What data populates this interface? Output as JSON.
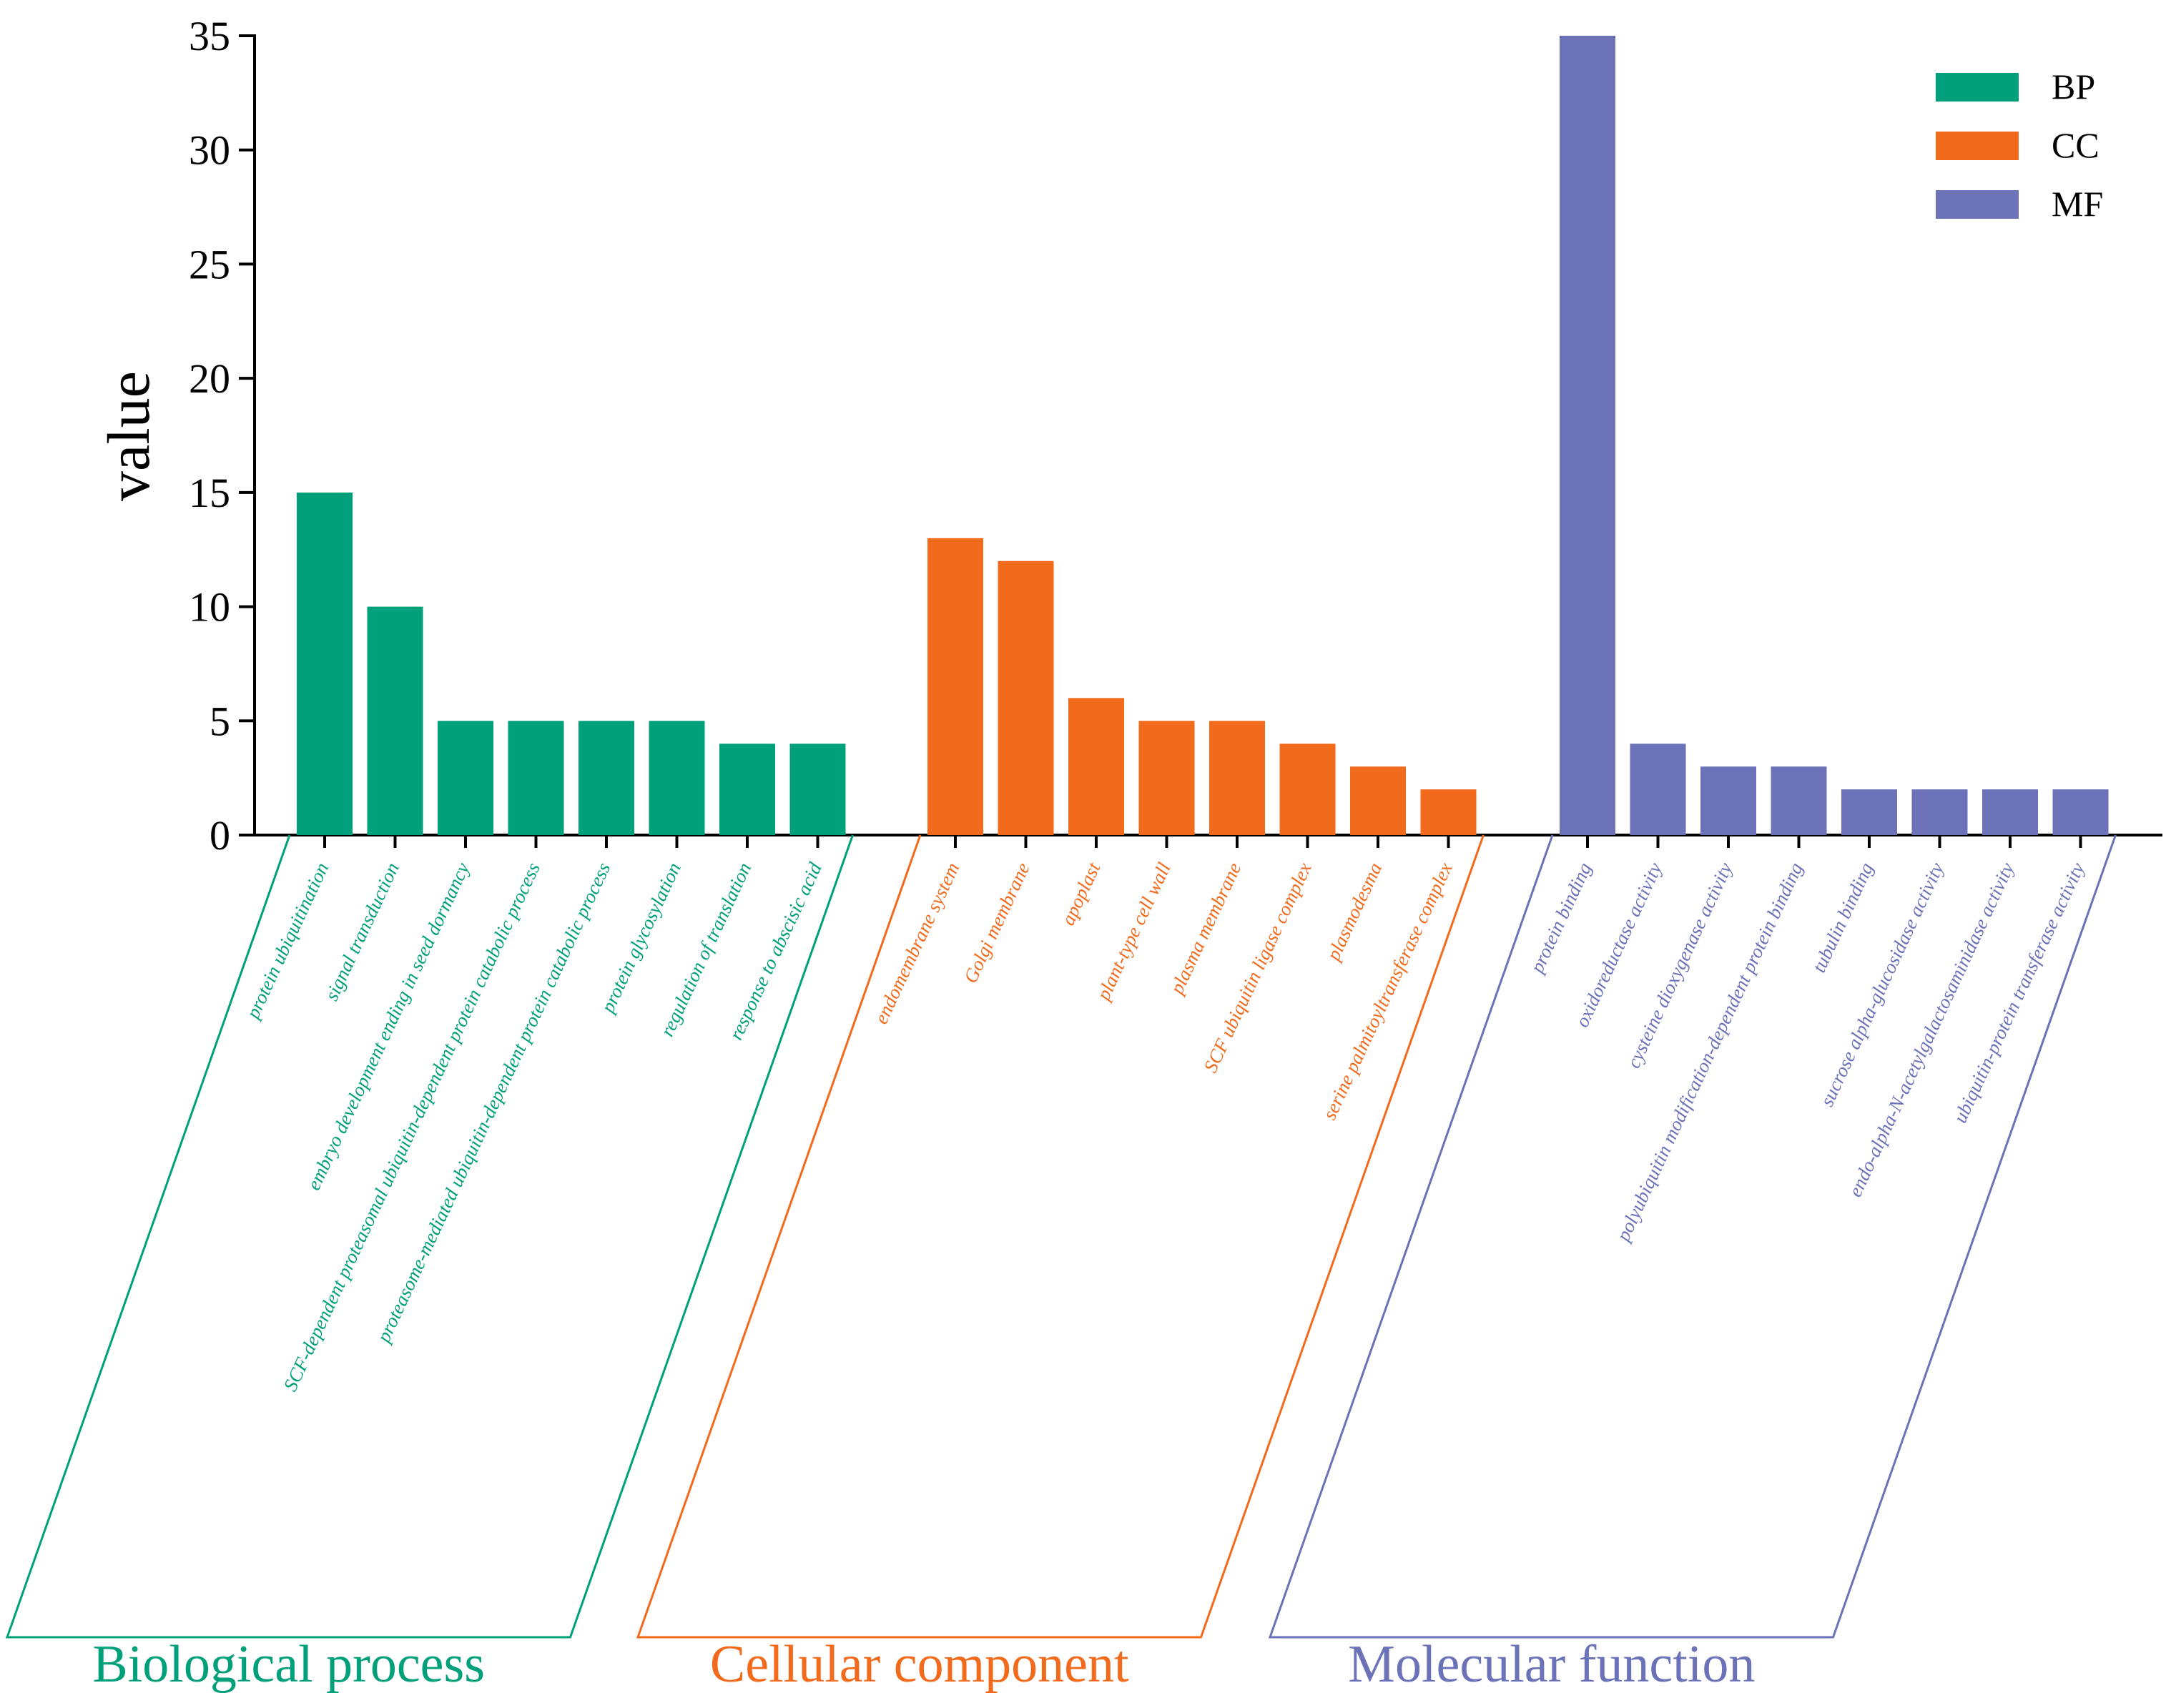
{
  "chart_data": {
    "type": "bar",
    "ylabel": "value",
    "ylim": [
      0,
      35
    ],
    "yticks": [
      0,
      5,
      10,
      15,
      20,
      25,
      30,
      35
    ],
    "grid": false,
    "legend_position": "top-right",
    "groups": [
      {
        "key": "BP",
        "title": "Biological process",
        "color": "#00a07a",
        "categories": [
          "protein ubiquitination",
          "signal transduction",
          "embryo development ending in seed dormancy",
          "SCF-dependent proteasomal ubiquitin-dependent protein catabolic process",
          "proteasome-mediated ubiquitin-dependent protein catabolic process",
          "protein glycosylation",
          "regulation of translation",
          "response to abscisic acid"
        ],
        "values": [
          15,
          10,
          5,
          5,
          5,
          5,
          4,
          4
        ]
      },
      {
        "key": "CC",
        "title": "Cellular component",
        "color": "#f26a1b",
        "categories": [
          "endomembrane system",
          "Golgi membrane",
          "apoplast",
          "plant-type cell wall",
          "plasma membrane",
          "SCF ubiquitin ligase complex",
          "plasmodesma",
          "serine palmitoyltransferase complex"
        ],
        "values": [
          13,
          12,
          6,
          5,
          5,
          4,
          3,
          2
        ]
      },
      {
        "key": "MF",
        "title": "Molecular function",
        "color": "#6b72b8",
        "categories": [
          "protein binding",
          "oxidoreductase activity",
          "cysteine dioxygenase activity",
          "polyubiquitin modification-dependent protein binding",
          "tubulin binding",
          "sucrose alpha-glucosidase activity",
          "endo-alpha-N-acetylgalactosaminidase activity",
          "ubiquitin-protein transferase activity"
        ],
        "values": [
          35,
          4,
          3,
          3,
          2,
          2,
          2,
          2
        ]
      }
    ]
  }
}
